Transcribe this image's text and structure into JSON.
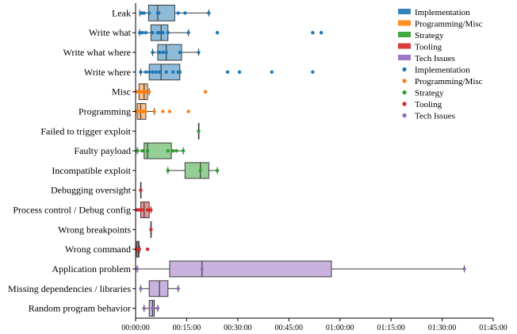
{
  "chart_data": {
    "type": "box",
    "categories": [
      "Leak",
      "Write what",
      "Write what where",
      "Write where",
      "Misc",
      "Programming",
      "Failed to trigger exploit",
      "Faulty payload",
      "Incompatible exploit",
      "Debugging oversight",
      "Process control / Debug config",
      "Wrong breakpoints",
      "Wrong command",
      "Application problem",
      "Missing dependencies / libraries",
      "Random program behavior"
    ],
    "x_ticks": [
      "00:00:00",
      "00:15:00",
      "00:30:00",
      "00:45:00",
      "01:00:00",
      "01:15:00",
      "01:30:00",
      "01:45:00"
    ],
    "x_unit": "minutes",
    "xlim": [
      0,
      105
    ],
    "groups": [
      {
        "name": "Implementation",
        "color": "#1f77b4"
      },
      {
        "name": "Programming/Misc",
        "color": "#ff7f0e"
      },
      {
        "name": "Strategy",
        "color": "#2ca02c"
      },
      {
        "name": "Tooling",
        "color": "#d62728"
      },
      {
        "name": "Tech Issues",
        "color": "#9467bd"
      }
    ],
    "boxes": [
      {
        "category": "Leak",
        "group": "Implementation",
        "whisker_low": 1.2,
        "q1": 3.8,
        "median": 6.5,
        "q3": 11.5,
        "whisker_high": 21.5,
        "points": [
          1.5,
          2,
          2.5,
          4,
          6.5,
          6.8,
          12.5,
          14.5,
          21.5
        ]
      },
      {
        "category": "Write what",
        "group": "Implementation",
        "whisker_low": 1.2,
        "q1": 4.5,
        "median": 7.5,
        "q3": 9.5,
        "whisker_high": 15.5,
        "points": [
          1.2,
          2,
          3,
          5,
          6.5,
          7,
          8,
          9.5,
          15.5,
          24,
          52,
          54.5
        ]
      },
      {
        "category": "Write what where",
        "group": "Implementation",
        "whisker_low": 5,
        "q1": 6.5,
        "median": 9,
        "q3": 13.5,
        "whisker_high": 18.5,
        "points": [
          5,
          7,
          8,
          9,
          13,
          18.5
        ]
      },
      {
        "category": "Write where",
        "group": "Implementation",
        "whisker_low": 1.5,
        "q1": 4,
        "median": 7.5,
        "q3": 13,
        "whisker_high": 13,
        "points": [
          1.5,
          3,
          4,
          5,
          6,
          7,
          9,
          11,
          12.5,
          13,
          27,
          30.5,
          40,
          52
        ]
      },
      {
        "category": "Misc",
        "group": "Programming/Misc",
        "whisker_low": 0,
        "q1": 1,
        "median": 2.5,
        "q3": 3.5,
        "whisker_high": 4,
        "points": [
          0.3,
          0.8,
          1.5,
          2.3,
          3,
          4,
          20.5
        ]
      },
      {
        "category": "Programming",
        "group": "Programming/Misc",
        "whisker_low": 0,
        "q1": 0.5,
        "median": 1.5,
        "q3": 3,
        "whisker_high": 5.5,
        "points": [
          0.2,
          0.6,
          1,
          1.6,
          2.2,
          3,
          5.5,
          8,
          10,
          15.5
        ]
      },
      {
        "category": "Failed to trigger exploit",
        "group": "Strategy",
        "whisker_low": 18.5,
        "q1": 18.5,
        "median": 18.5,
        "q3": 18.5,
        "whisker_high": 18.5,
        "points": [
          18.5
        ]
      },
      {
        "category": "Faulty payload",
        "group": "Strategy",
        "whisker_low": 0.5,
        "q1": 2.5,
        "median": 3.5,
        "q3": 10.5,
        "whisker_high": 14,
        "points": [
          0.5,
          2,
          3.5,
          9.5,
          11,
          12,
          14
        ]
      },
      {
        "category": "Incompatible exploit",
        "group": "Strategy",
        "whisker_low": 9.5,
        "q1": 14.5,
        "median": 19,
        "q3": 21.5,
        "whisker_high": 24,
        "points": [
          9.5,
          19,
          24
        ]
      },
      {
        "category": "Debugging oversight",
        "group": "Tooling",
        "whisker_low": 1.5,
        "q1": 1.5,
        "median": 1.5,
        "q3": 1.5,
        "whisker_high": 1.5,
        "points": [
          1.5
        ]
      },
      {
        "category": "Process control / Debug config",
        "group": "Tooling",
        "whisker_low": 0,
        "q1": 1.5,
        "median": 2.5,
        "q3": 4,
        "whisker_high": 4.5,
        "points": [
          0.3,
          1,
          1.8,
          3.5,
          4.5
        ]
      },
      {
        "category": "Wrong breakpoints",
        "group": "Tooling",
        "whisker_low": 4.5,
        "q1": 4.5,
        "median": 4.5,
        "q3": 4.5,
        "whisker_high": 4.5,
        "points": [
          4.5
        ]
      },
      {
        "category": "Wrong command",
        "group": "Tooling",
        "whisker_low": 0.3,
        "q1": 0.3,
        "median": 0.8,
        "q3": 1,
        "whisker_high": 1.2,
        "points": [
          0.3,
          0.7,
          1.1,
          3.5
        ]
      },
      {
        "category": "Application problem",
        "group": "Tech Issues",
        "whisker_low": 0.5,
        "q1": 10,
        "median": 19.5,
        "q3": 57.5,
        "whisker_high": 96.5,
        "points": [
          0.5,
          19.5,
          96.5
        ]
      },
      {
        "category": "Missing dependencies / libraries",
        "group": "Tech Issues",
        "whisker_low": 1.5,
        "q1": 4,
        "median": 7,
        "q3": 9.5,
        "whisker_high": 12.5,
        "points": [
          1.5,
          12.5
        ]
      },
      {
        "category": "Random program behavior",
        "group": "Tech Issues",
        "whisker_low": 2.5,
        "q1": 4,
        "median": 5,
        "q3": 5.5,
        "whisker_high": 6.5,
        "points": [
          2.5,
          5,
          6.5
        ]
      }
    ],
    "legend": {
      "position": "top-right",
      "box_entries": [
        "Implementation",
        "Programming/Misc",
        "Strategy",
        "Tooling",
        "Tech Issues"
      ],
      "point_entries": [
        "Implementation",
        "Programming/Misc",
        "Strategy",
        "Tooling",
        "Tech Issues"
      ]
    },
    "grid": false
  }
}
